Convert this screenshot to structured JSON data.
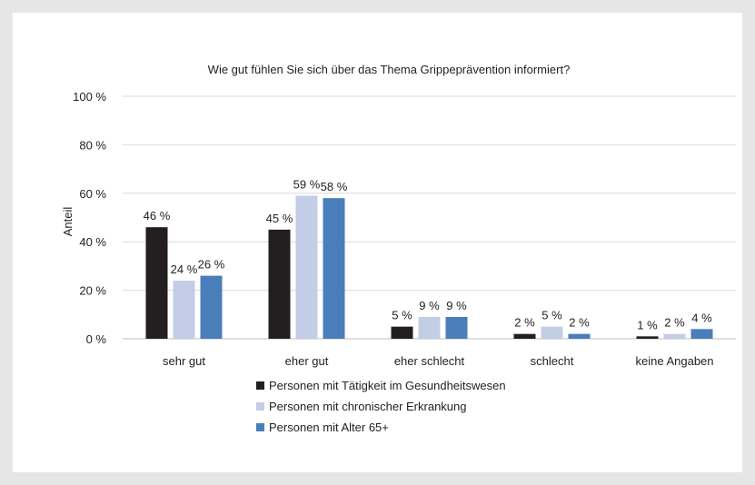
{
  "chart_data": {
    "type": "bar",
    "title": "Wie gut fühlen Sie sich über das Thema Grippeprävention informiert?",
    "xlabel": "",
    "ylabel": "Anteil",
    "ylim": [
      0,
      100
    ],
    "y_ticks": [
      0,
      20,
      40,
      60,
      80,
      100
    ],
    "y_tick_suffix": " %",
    "categories": [
      "sehr gut",
      "eher gut",
      "eher schlecht",
      "schlecht",
      "keine Angaben"
    ],
    "series": [
      {
        "name": "Personen mit Tätigkeit im Gesundheitswesen",
        "color": "#231f20",
        "values": [
          46,
          45,
          5,
          2,
          1
        ]
      },
      {
        "name": "Personen mit chronischer Erkrankung",
        "color": "#c3cde6",
        "values": [
          24,
          59,
          9,
          5,
          2
        ]
      },
      {
        "name": "Personen mit Alter 65+",
        "color": "#4a7ebb",
        "values": [
          26,
          58,
          9,
          2,
          4
        ]
      }
    ],
    "data_label_suffix": " %",
    "grid": true,
    "legend_position": "bottom"
  }
}
